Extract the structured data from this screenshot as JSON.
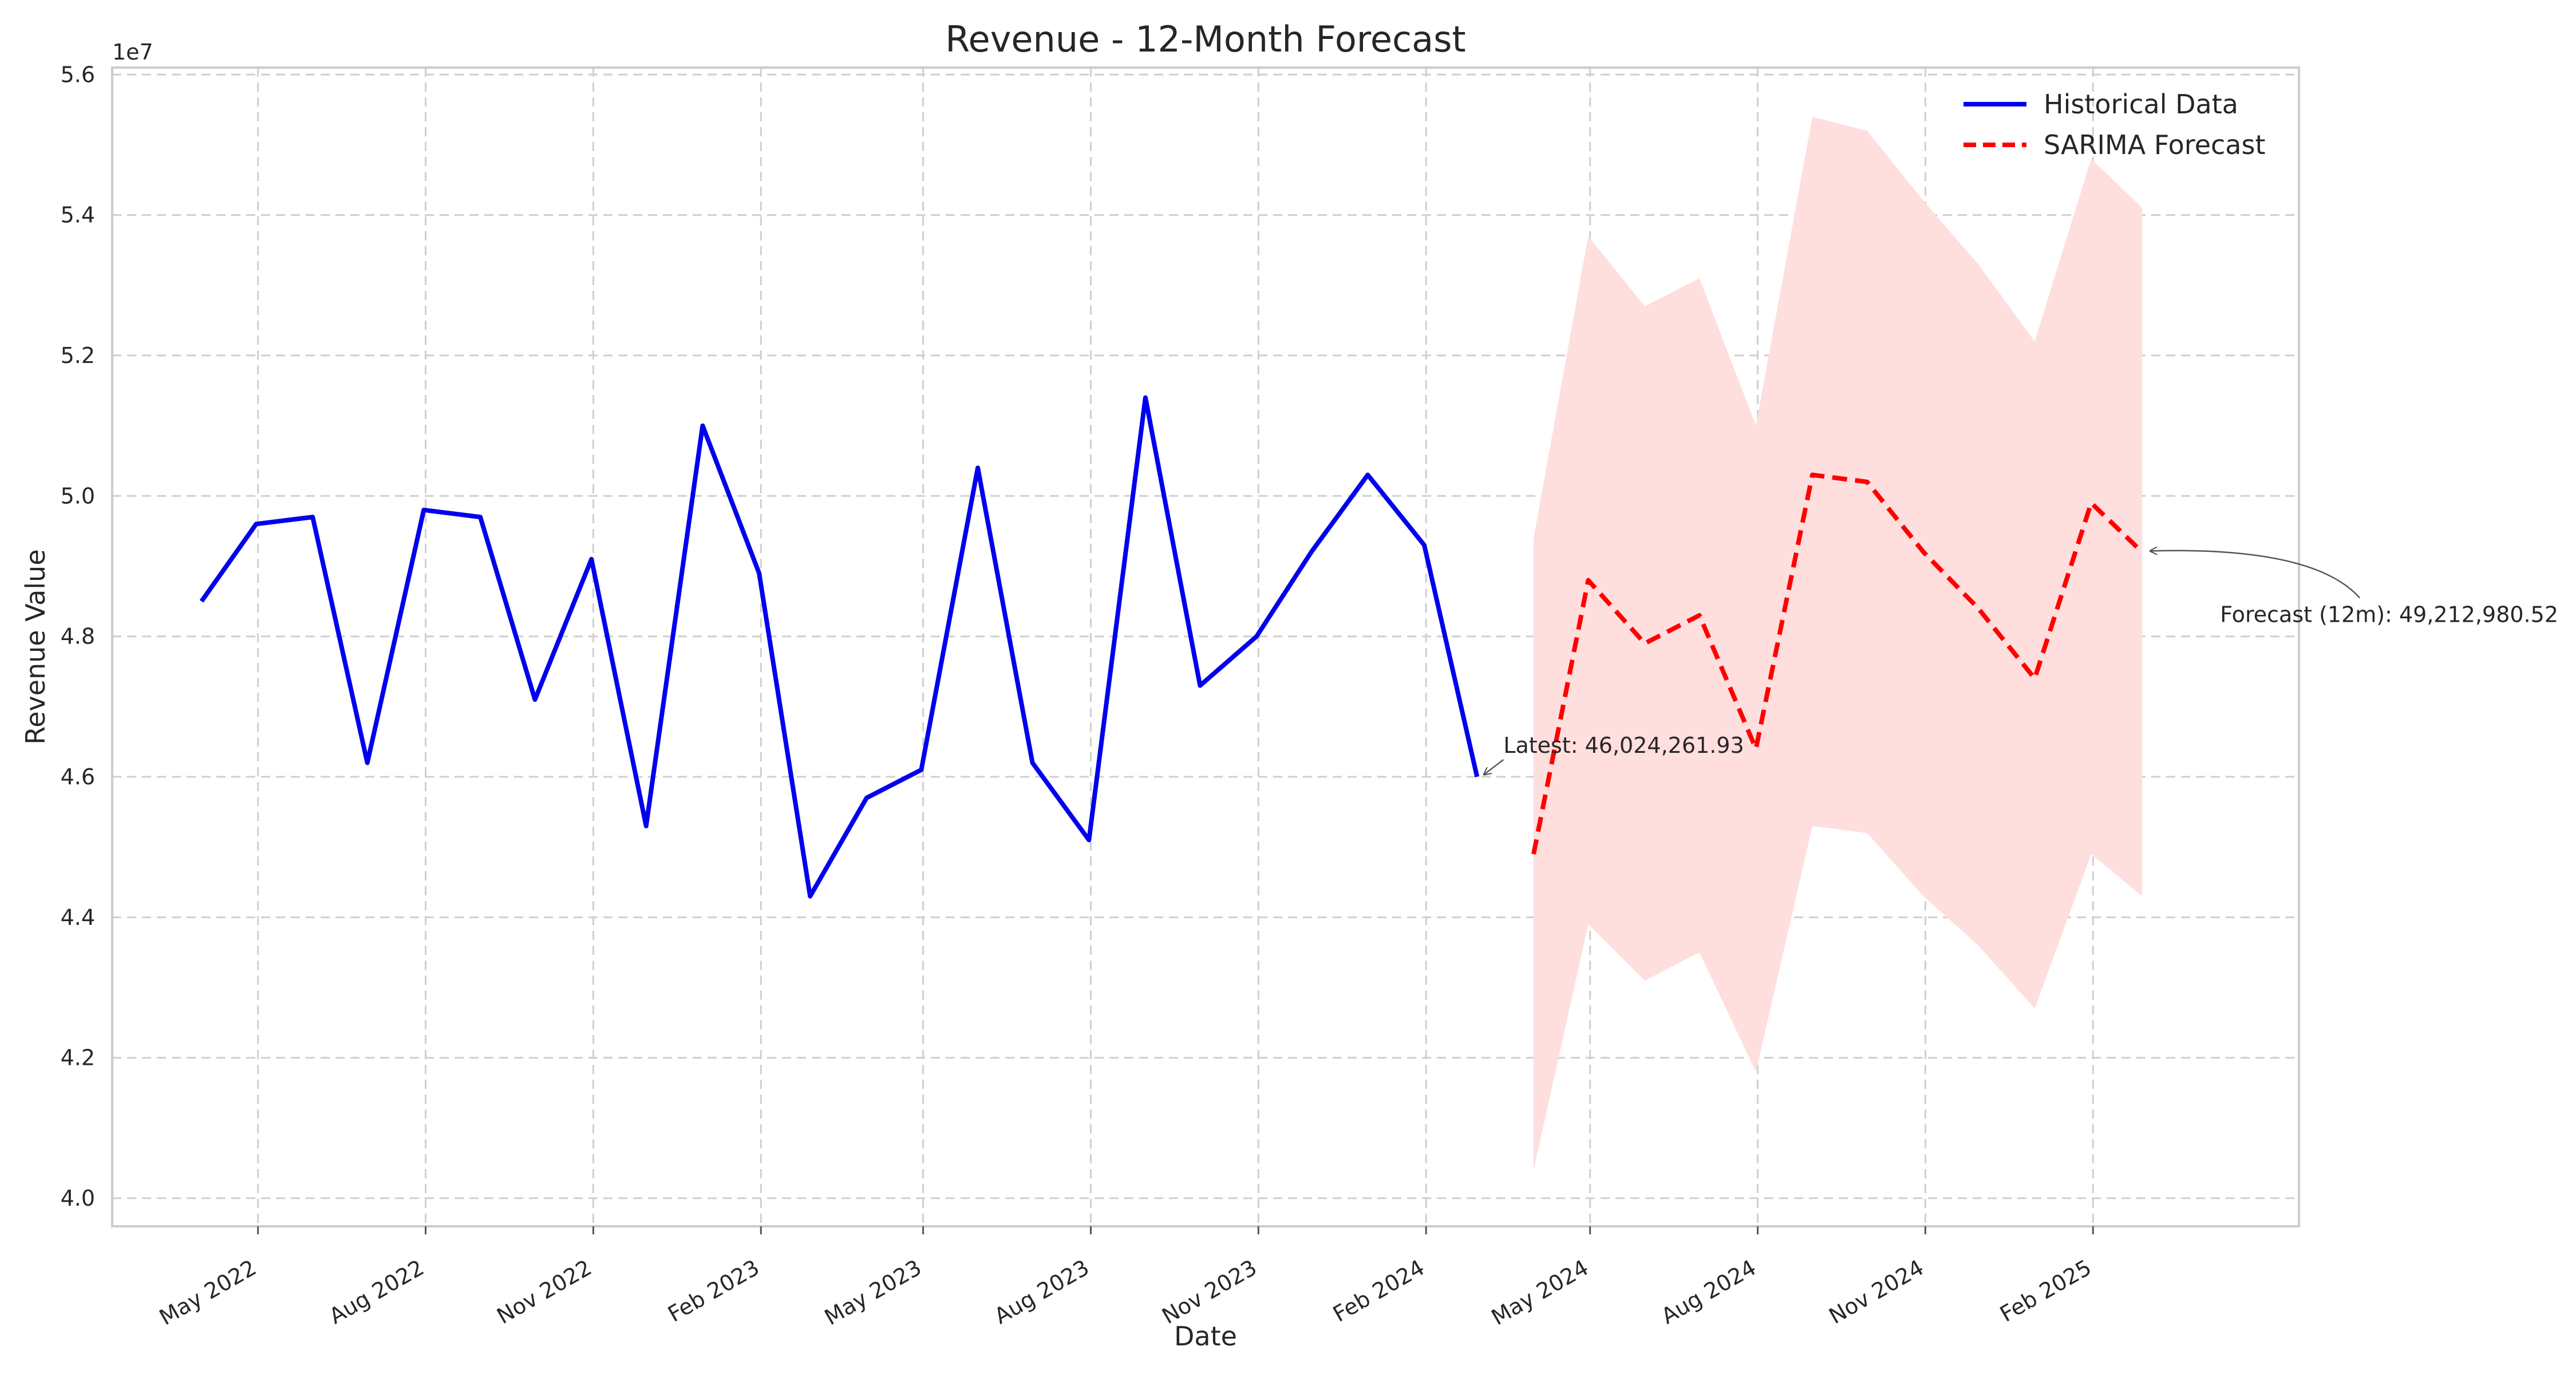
{
  "chart_data": {
    "type": "line",
    "title": "Revenue - 12-Month Forecast",
    "xlabel": "Date",
    "ylabel": "Revenue Value",
    "y_offset_label": "1e7",
    "ylim": [
      3.96,
      5.61
    ],
    "xlim": [
      "2022-02-10",
      "2025-05-25"
    ],
    "y_scale_factor": 10000000,
    "yticks": [
      4.0,
      4.2,
      4.4,
      4.6,
      4.8,
      5.0,
      5.2,
      5.4,
      5.6
    ],
    "ytick_labels": [
      "4.0",
      "4.2",
      "4.4",
      "4.6",
      "4.8",
      "5.0",
      "5.2",
      "5.4",
      "5.6"
    ],
    "xticks": [
      "2022-05-01",
      "2022-08-01",
      "2022-11-01",
      "2023-02-01",
      "2023-05-01",
      "2023-08-01",
      "2023-11-01",
      "2024-02-01",
      "2024-05-01",
      "2024-08-01",
      "2024-11-01",
      "2025-02-01"
    ],
    "xtick_labels": [
      "May 2022",
      "Aug 2022",
      "Nov 2022",
      "Feb 2023",
      "May 2023",
      "Aug 2023",
      "Nov 2023",
      "Feb 2024",
      "May 2024",
      "Aug 2024",
      "Nov 2024",
      "Feb 2025"
    ],
    "grid": true,
    "legend_position": "top-right",
    "series": [
      {
        "name": "Historical Data",
        "color": "#0000ee",
        "style": "solid",
        "x": [
          "2022-03-31",
          "2022-04-30",
          "2022-05-31",
          "2022-06-30",
          "2022-07-31",
          "2022-08-31",
          "2022-09-30",
          "2022-10-31",
          "2022-11-30",
          "2022-12-31",
          "2023-01-31",
          "2023-02-28",
          "2023-03-31",
          "2023-04-30",
          "2023-05-31",
          "2023-06-30",
          "2023-07-31",
          "2023-08-31",
          "2023-09-30",
          "2023-10-31",
          "2023-11-30",
          "2023-12-31",
          "2024-01-31",
          "2024-02-29",
          "2024-03-31"
        ],
        "y": [
          4.85,
          4.96,
          4.97,
          4.62,
          4.98,
          4.97,
          4.71,
          4.91,
          4.53,
          5.1,
          4.89,
          4.43,
          4.57,
          4.61,
          5.04,
          4.62,
          4.51,
          5.14,
          4.73,
          4.8,
          4.92,
          5.03,
          4.93,
          4.6,
          null
        ]
      },
      {
        "name": "SARIMA Forecast",
        "color": "#ff0000",
        "style": "dashed",
        "x": [
          "2024-03-31",
          "2024-04-30",
          "2024-05-31",
          "2024-06-30",
          "2024-07-31",
          "2024-08-31",
          "2024-09-30",
          "2024-10-31",
          "2024-11-30",
          "2024-12-31",
          "2025-01-31",
          "2025-02-28"
        ],
        "y": [
          4.49,
          4.88,
          4.79,
          4.83,
          4.64,
          5.03,
          5.02,
          4.92,
          4.84,
          4.74,
          4.99,
          4.92
        ],
        "ci_upper": [
          4.94,
          5.37,
          5.27,
          5.31,
          5.1,
          5.54,
          5.52,
          5.42,
          5.33,
          5.22,
          5.48,
          5.41
        ],
        "ci_lower": [
          4.04,
          4.39,
          4.31,
          4.35,
          4.18,
          4.53,
          4.52,
          4.43,
          4.36,
          4.27,
          4.49,
          4.43
        ],
        "ci_color": "#ffdede"
      }
    ],
    "annotations": [
      {
        "text": "Latest: 46,024,261.93",
        "x": "2024-02-29",
        "y": 4.6
      },
      {
        "text": "Forecast (12m): 49,212,980.52",
        "x": "2025-02-28",
        "y": 4.92
      }
    ]
  }
}
